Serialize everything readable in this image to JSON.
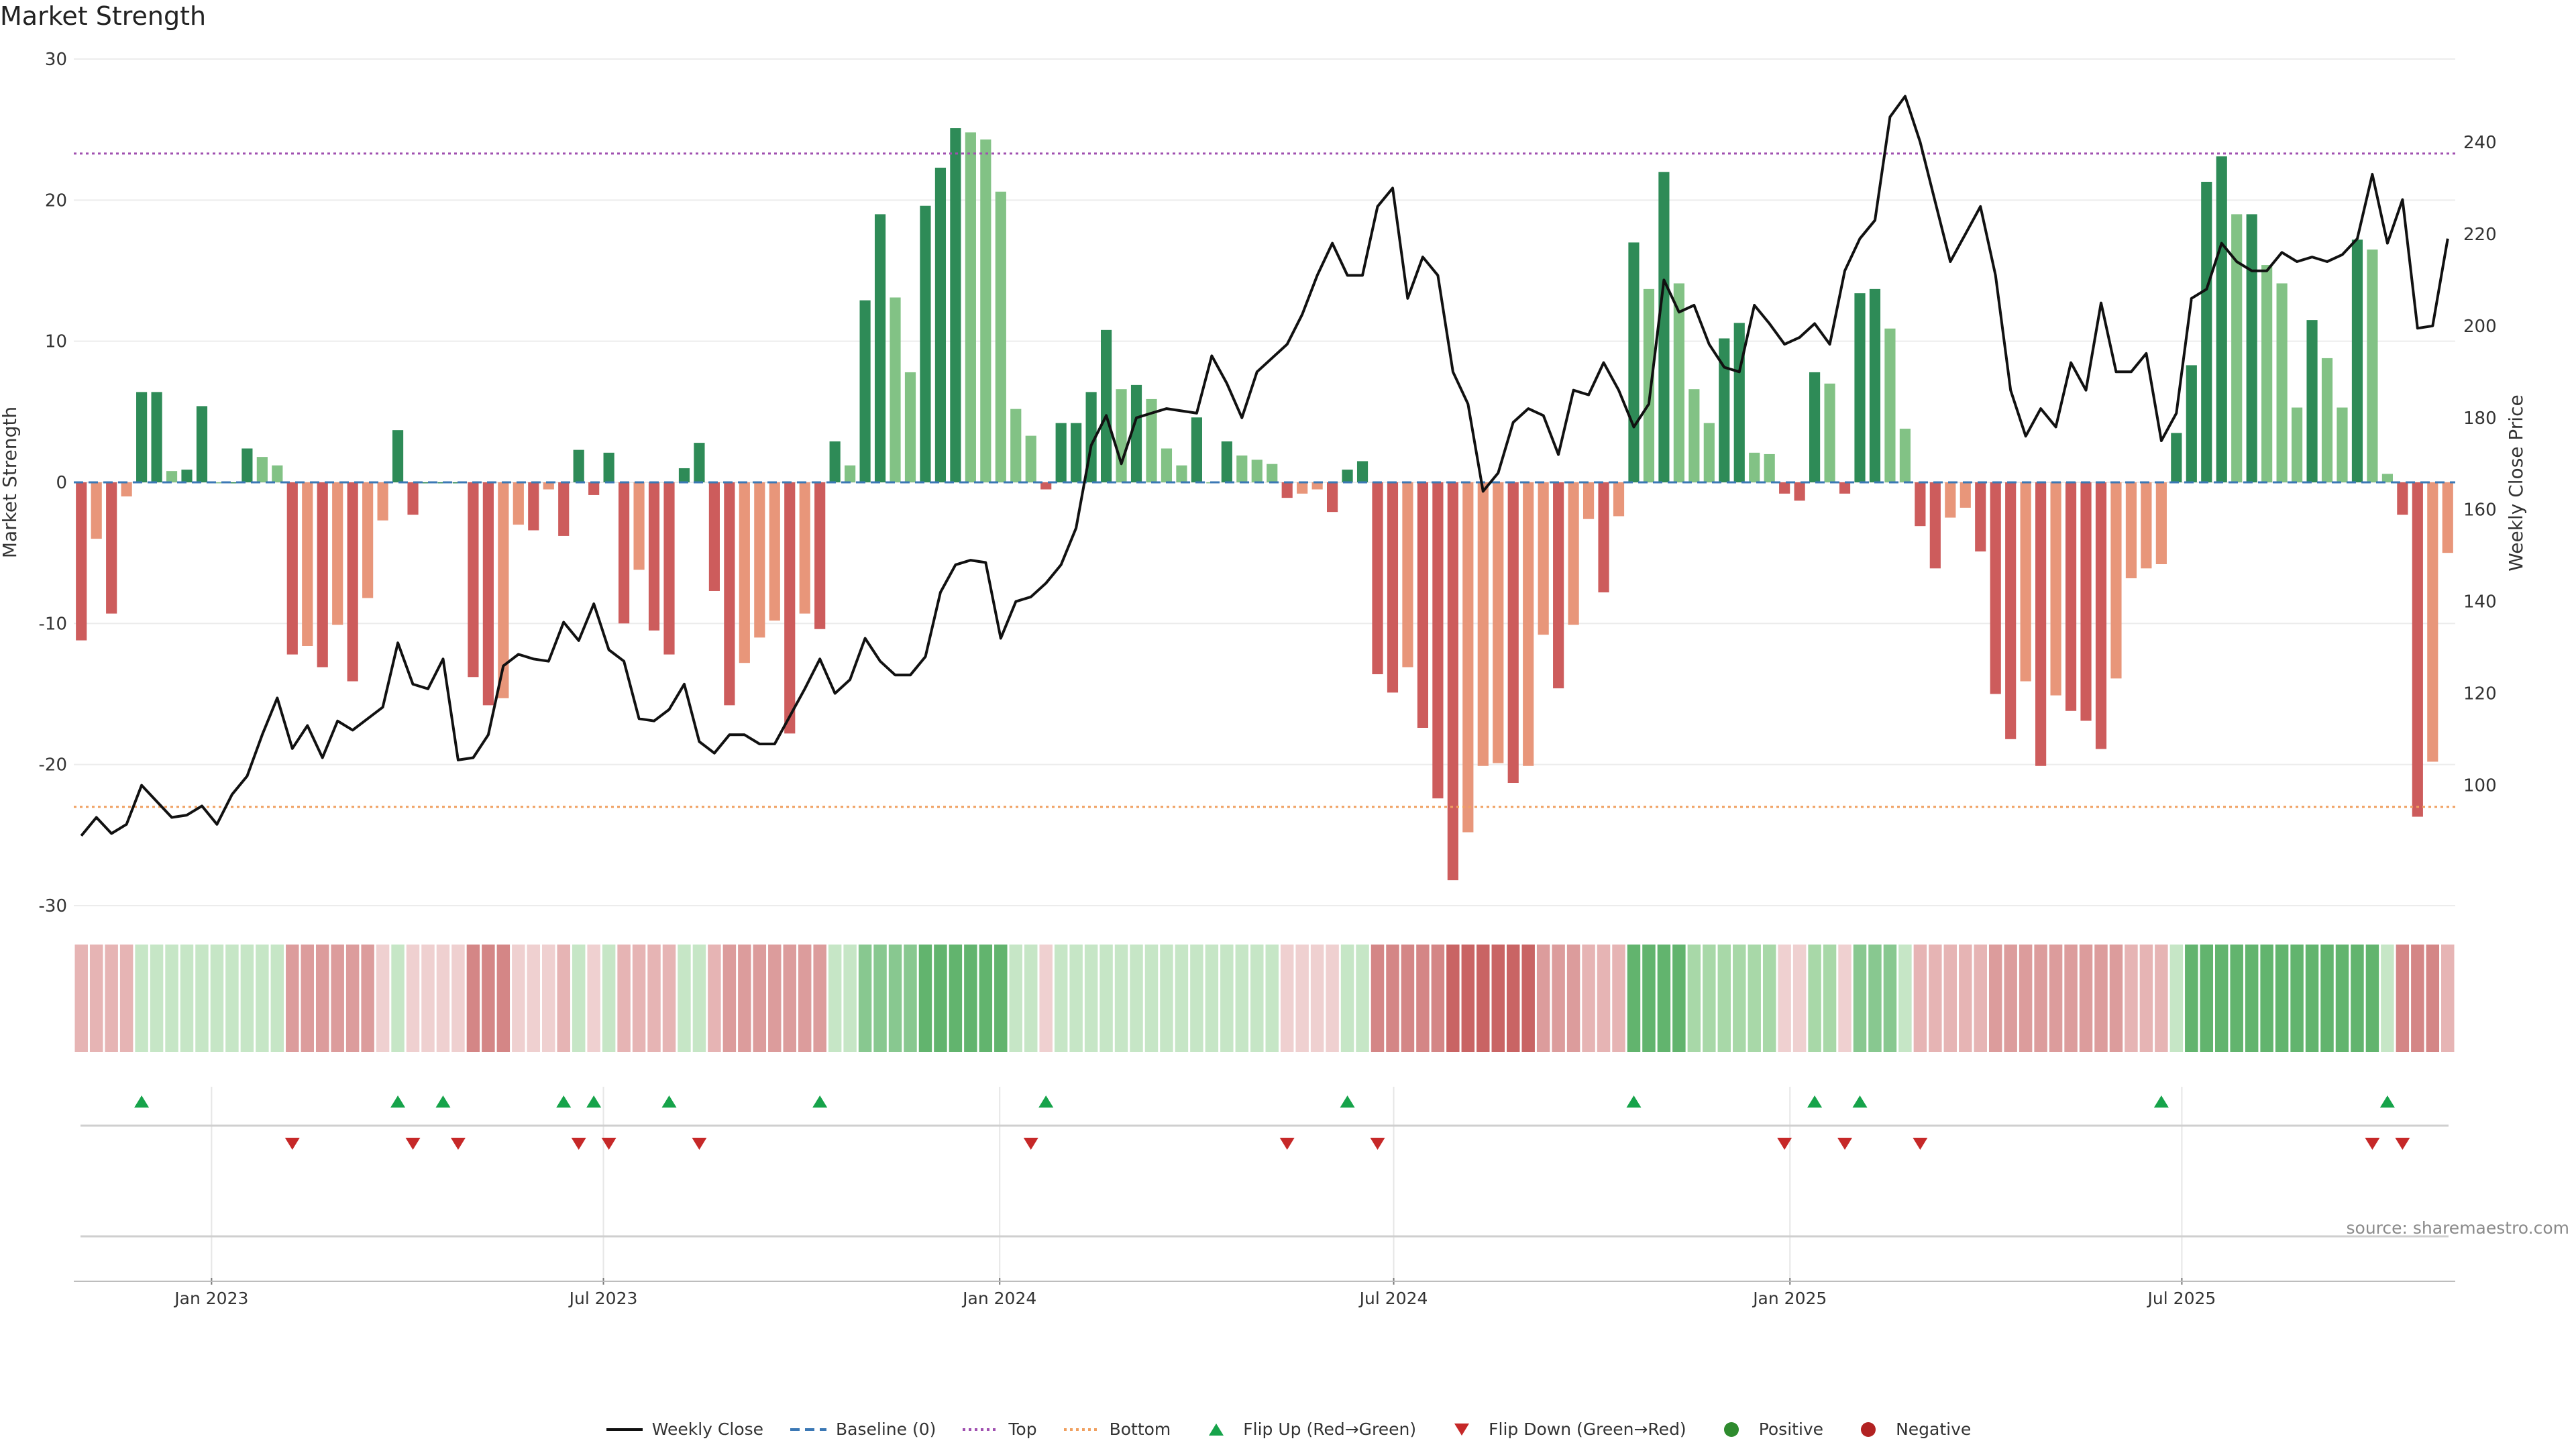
{
  "page_title": "Market Strength",
  "source_note": "source: sharemaestro.com",
  "colors": {
    "green_dark": "#2e8b57",
    "green_light": "#82c285",
    "red_dark": "#cd5c5c",
    "red_light": "#e8967a",
    "close_line": "#111111",
    "baseline": "#3b78b5",
    "top_line": "#a050b0",
    "bottom_line": "#f0a060",
    "flip_up": "#16a34a",
    "flip_down": "#c62828",
    "grid": "#ececec"
  },
  "legend": [
    {
      "label": "Weekly Close",
      "kind": "line",
      "color": "#111111",
      "dash": ""
    },
    {
      "label": "Baseline (0)",
      "kind": "line",
      "color": "#3b78b5",
      "dash": "14,8"
    },
    {
      "label": "Top",
      "kind": "line",
      "color": "#a050b0",
      "dash": "4,5"
    },
    {
      "label": "Bottom",
      "kind": "line",
      "color": "#f0a060",
      "dash": "4,5"
    },
    {
      "label": "Flip Up (Red→Green)",
      "kind": "tri-up",
      "color": "#16a34a"
    },
    {
      "label": "Flip Down (Green→Red)",
      "kind": "tri-down",
      "color": "#c62828"
    },
    {
      "label": "Positive",
      "kind": "dot",
      "color": "#2e8b2e"
    },
    {
      "label": "Negative",
      "kind": "dot",
      "color": "#b22222"
    }
  ],
  "chart_data": {
    "type": "bar",
    "title": "Market Strength",
    "ylabel": "Market Strength",
    "y2label": "Weekly Close Price",
    "ylim": [
      -30,
      30
    ],
    "y_ticks": [
      30,
      20,
      10,
      0,
      -10,
      -20,
      -30
    ],
    "y2lim": [
      73.8,
      258.1
    ],
    "y2_ticks": [
      100,
      120,
      140,
      160,
      180,
      200,
      220,
      240
    ],
    "x_tick_labels": [
      "Jan 2023",
      "Jul 2023",
      "Jan 2024",
      "Jul 2024",
      "Jan 2025",
      "Jul 2025"
    ],
    "x_tick_index": [
      9.14,
      35.14,
      61.43,
      87.57,
      113.86,
      139.86
    ],
    "top_threshold": 23.3,
    "bottom_threshold": -23,
    "grid": true,
    "legend_position": "bottom-center",
    "strength": [
      -11.2,
      -4,
      -9.3,
      -1,
      6.4,
      6.4,
      0.8,
      0.9,
      5.4,
      0,
      0,
      2.4,
      1.8,
      1.2,
      -12.2,
      -11.6,
      -13.1,
      -10.1,
      -14.1,
      -8.2,
      -2.7,
      3.7,
      -2.3,
      0,
      0,
      0,
      -13.8,
      -15.8,
      -15.3,
      -3,
      -3.4,
      -0.5,
      -3.8,
      2.3,
      -0.9,
      2.1,
      -10,
      -6.2,
      -10.5,
      -12.2,
      1,
      2.8,
      -7.7,
      -15.8,
      -12.8,
      -11,
      -9.8,
      -17.8,
      -9.3,
      -10.4,
      2.9,
      1.2,
      12.9,
      19,
      13.1,
      7.8,
      19.6,
      22.3,
      25.1,
      24.8,
      24.3,
      20.6,
      5.2,
      3.3,
      -0.5,
      4.2,
      4.2,
      6.4,
      10.8,
      6.6,
      6.9,
      5.9,
      2.4,
      1.2,
      4.6,
      0,
      2.9,
      1.9,
      1.6,
      1.3,
      -1.1,
      -0.8,
      -0.5,
      -2.1,
      0.9,
      1.5,
      -13.6,
      -14.9,
      -13.1,
      -17.4,
      -22.4,
      -28.2,
      -24.8,
      -20.1,
      -19.9,
      -21.3,
      -20.1,
      -10.8,
      -14.6,
      -10.1,
      -2.6,
      -7.8,
      -2.4,
      17,
      13.7,
      22,
      14.1,
      6.6,
      4.2,
      10.2,
      11.3,
      2.1,
      2,
      -0.8,
      -1.3,
      7.8,
      7,
      -0.8,
      13.4,
      13.7,
      10.9,
      3.8,
      -3.1,
      -6.1,
      -2.5,
      -1.8,
      -4.9,
      -15,
      -18.2,
      -14.1,
      -20.1,
      -15.1,
      -16.2,
      -16.9,
      -18.9,
      -13.9,
      -6.8,
      -6.1,
      -5.8,
      3.5,
      8.3,
      21.3,
      23.1,
      19,
      19,
      15.4,
      14.1,
      5.3,
      11.5,
      8.8,
      5.3,
      17.2,
      16.5,
      0.6,
      -2.3,
      -23.7,
      -19.8,
      -5
    ],
    "weekly_close": [
      89,
      93,
      89.5,
      91.5,
      100,
      96.5,
      93,
      93.5,
      95.5,
      91.5,
      98,
      102,
      111,
      119,
      108,
      113,
      106,
      114,
      112,
      114.5,
      117,
      131,
      122,
      121,
      127.5,
      105.5,
      106,
      111,
      126,
      128.5,
      127.5,
      127,
      135.5,
      131.5,
      139.5,
      129.5,
      127,
      114.5,
      114,
      116.5,
      122,
      109.5,
      107,
      111,
      111,
      109,
      109,
      115,
      121,
      127.5,
      120,
      123,
      132,
      127,
      124,
      124,
      128,
      142,
      148,
      149,
      148.5,
      132,
      140,
      141,
      144,
      148,
      156,
      174,
      180.5,
      170,
      180,
      181,
      182,
      181.5,
      181,
      193.5,
      187.5,
      180,
      190,
      193,
      196,
      202.5,
      211,
      218,
      211,
      211,
      226,
      230,
      206,
      215,
      211,
      190,
      183,
      164,
      168,
      179,
      182,
      180.5,
      172,
      186,
      185,
      192,
      186,
      178,
      183,
      210,
      203,
      204.5,
      196,
      191,
      190,
      204.5,
      200.5,
      196,
      197.5,
      200.5,
      196,
      212,
      219,
      223,
      245.5,
      250,
      240,
      227,
      214,
      220,
      226,
      211,
      186,
      176,
      182,
      178,
      192,
      186,
      205,
      190,
      190,
      194,
      175,
      181,
      206,
      208,
      218,
      214,
      212,
      212,
      216,
      214,
      215,
      214,
      215.5,
      219,
      233,
      218,
      227.5,
      199.5,
      200,
      219
    ],
    "block_intensity": [
      -2,
      -2,
      -2,
      -2,
      1,
      1,
      1,
      1,
      1,
      1,
      1,
      1,
      1,
      1,
      -3,
      -3,
      -3,
      -3,
      -3,
      -3,
      -1,
      1,
      -1,
      -1,
      -1,
      -1,
      -4,
      -4,
      -4,
      -1,
      -1,
      -1,
      -2,
      1,
      -1,
      1,
      -2,
      -2,
      -2,
      -2,
      1,
      1,
      -2,
      -3,
      -3,
      -3,
      -3,
      -3,
      -3,
      -3,
      1,
      1,
      3,
      3,
      3,
      3,
      4,
      4,
      4,
      4,
      4,
      4,
      1,
      1,
      -1,
      1,
      1,
      1,
      1,
      1,
      1,
      1,
      1,
      1,
      1,
      1,
      1,
      1,
      1,
      1,
      -1,
      -1,
      -1,
      -1,
      1,
      1,
      -4,
      -4,
      -4,
      -4,
      -4,
      -5,
      -5,
      -5,
      -5,
      -5,
      -5,
      -3,
      -3,
      -3,
      -2,
      -2,
      -2,
      4,
      4,
      4,
      4,
      2,
      2,
      2,
      2,
      2,
      2,
      -1,
      -1,
      2,
      2,
      -1,
      3,
      3,
      3,
      1,
      -2,
      -2,
      -2,
      -2,
      -2,
      -3,
      -3,
      -3,
      -3,
      -3,
      -3,
      -3,
      -3,
      -3,
      -2,
      -2,
      -2,
      1,
      4,
      4,
      4,
      4,
      4,
      4,
      4,
      4,
      4,
      4,
      4,
      4,
      4,
      1,
      -4,
      -4,
      -4,
      -2
    ],
    "flip_up_index": [
      4,
      21,
      24,
      32,
      34,
      39,
      49,
      64,
      84,
      103,
      115,
      118,
      138,
      153
    ],
    "flip_down_index": [
      14,
      22,
      25,
      33,
      35,
      41,
      63,
      80,
      86,
      113,
      117,
      122,
      152,
      154
    ]
  }
}
